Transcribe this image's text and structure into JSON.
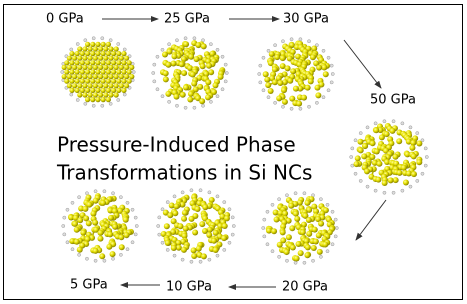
{
  "title": [
    "Pressure-Induced Phase",
    "Transformations in Si NCs"
  ],
  "nodes": [
    {
      "label": "0 GPa"
    },
    {
      "label": "25 GPa"
    },
    {
      "label": "30 GPa"
    },
    {
      "label": "50 GPa"
    },
    {
      "label": "20 GPa"
    },
    {
      "label": "10 GPa"
    },
    {
      "label": "5 GPa"
    }
  ]
}
